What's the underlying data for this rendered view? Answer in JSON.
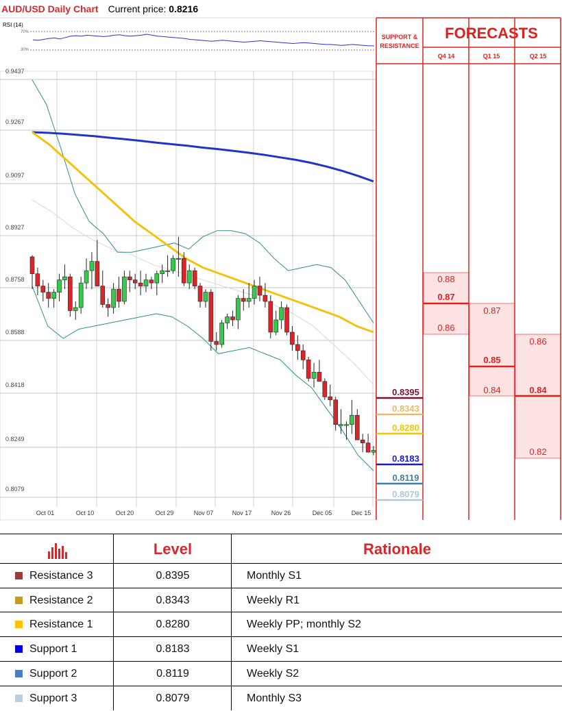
{
  "header": {
    "title": "AUD/USD Daily Chart",
    "price_label": "Current price:",
    "price_value": "0.8216"
  },
  "rsi": {
    "label": "RSI (14)",
    "upper": "70%",
    "lower": "30%",
    "values": [
      52,
      51,
      53,
      55,
      56,
      54,
      57,
      60,
      61,
      60,
      62,
      61,
      60,
      59,
      60,
      62,
      63,
      61,
      60,
      61,
      62,
      64,
      62,
      60,
      59,
      58,
      57,
      56,
      55,
      53,
      52,
      51,
      50,
      49,
      50,
      51,
      50,
      49,
      48,
      47,
      48,
      49,
      50,
      49,
      48,
      47,
      46,
      45,
      44,
      45,
      46,
      45,
      44,
      43,
      42,
      42,
      41,
      40,
      41,
      42,
      41,
      40,
      39,
      39
    ]
  },
  "chart_data": {
    "type": "candlestick",
    "title": "AUD/USD Daily Chart",
    "y_ticks": [
      "0.9437",
      "0.9267",
      "0.9097",
      "0.8927",
      "0.8758",
      "0.8588",
      "0.8418",
      "0.8249",
      "0.8079"
    ],
    "ylim": [
      0.8055,
      0.9437
    ],
    "x_ticks": [
      "Oct 01",
      "Oct 10",
      "Oct 20",
      "Oct 29",
      "Nov 07",
      "Nov 17",
      "Nov 26",
      "Dec 05",
      "Dec 15"
    ],
    "grid": true,
    "candles": [
      [
        0.8845,
        0.885,
        0.874,
        0.879
      ],
      [
        0.879,
        0.881,
        0.872,
        0.875
      ],
      [
        0.875,
        0.877,
        0.87,
        0.873
      ],
      [
        0.873,
        0.876,
        0.868,
        0.871
      ],
      [
        0.871,
        0.874,
        0.868,
        0.873
      ],
      [
        0.873,
        0.879,
        0.87,
        0.877
      ],
      [
        0.877,
        0.882,
        0.874,
        0.878
      ],
      [
        0.878,
        0.879,
        0.865,
        0.867
      ],
      [
        0.867,
        0.87,
        0.864,
        0.868
      ],
      [
        0.868,
        0.878,
        0.866,
        0.876
      ],
      [
        0.876,
        0.884,
        0.874,
        0.88
      ],
      [
        0.88,
        0.886,
        0.874,
        0.883
      ],
      [
        0.883,
        0.89,
        0.876,
        0.875
      ],
      [
        0.875,
        0.88,
        0.868,
        0.869
      ],
      [
        0.869,
        0.871,
        0.865,
        0.868
      ],
      [
        0.868,
        0.876,
        0.866,
        0.874
      ],
      [
        0.874,
        0.878,
        0.868,
        0.87
      ],
      [
        0.87,
        0.88,
        0.869,
        0.878
      ],
      [
        0.878,
        0.88,
        0.873,
        0.877
      ],
      [
        0.877,
        0.879,
        0.874,
        0.876
      ],
      [
        0.876,
        0.88,
        0.872,
        0.875
      ],
      [
        0.875,
        0.879,
        0.873,
        0.877
      ],
      [
        0.877,
        0.878,
        0.874,
        0.876
      ],
      [
        0.876,
        0.88,
        0.872,
        0.879
      ],
      [
        0.879,
        0.882,
        0.876,
        0.88
      ],
      [
        0.88,
        0.885,
        0.878,
        0.88
      ],
      [
        0.88,
        0.885,
        0.879,
        0.884
      ],
      [
        0.884,
        0.891,
        0.878,
        0.884
      ],
      [
        0.884,
        0.886,
        0.875,
        0.876
      ],
      [
        0.876,
        0.882,
        0.874,
        0.88
      ],
      [
        0.88,
        0.881,
        0.874,
        0.875
      ],
      [
        0.875,
        0.876,
        0.868,
        0.87
      ],
      [
        0.87,
        0.874,
        0.868,
        0.873
      ],
      [
        0.873,
        0.874,
        0.854,
        0.857
      ],
      [
        0.857,
        0.86,
        0.854,
        0.856
      ],
      [
        0.856,
        0.864,
        0.855,
        0.863
      ],
      [
        0.863,
        0.866,
        0.861,
        0.865
      ],
      [
        0.865,
        0.867,
        0.862,
        0.864
      ],
      [
        0.864,
        0.872,
        0.861,
        0.871
      ],
      [
        0.871,
        0.874,
        0.867,
        0.87
      ],
      [
        0.87,
        0.876,
        0.868,
        0.871
      ],
      [
        0.871,
        0.877,
        0.869,
        0.875
      ],
      [
        0.875,
        0.878,
        0.87,
        0.872
      ],
      [
        0.872,
        0.876,
        0.868,
        0.87
      ],
      [
        0.87,
        0.872,
        0.858,
        0.86
      ],
      [
        0.86,
        0.867,
        0.859,
        0.864
      ],
      [
        0.864,
        0.87,
        0.861,
        0.868
      ],
      [
        0.868,
        0.869,
        0.859,
        0.86
      ],
      [
        0.86,
        0.862,
        0.854,
        0.856
      ],
      [
        0.856,
        0.859,
        0.851,
        0.854
      ],
      [
        0.854,
        0.856,
        0.848,
        0.851
      ],
      [
        0.851,
        0.852,
        0.844,
        0.845
      ],
      [
        0.845,
        0.85,
        0.842,
        0.847
      ],
      [
        0.847,
        0.851,
        0.844,
        0.844
      ],
      [
        0.844,
        0.845,
        0.838,
        0.839
      ],
      [
        0.839,
        0.843,
        0.836,
        0.838
      ],
      [
        0.838,
        0.839,
        0.828,
        0.83
      ],
      [
        0.83,
        0.835,
        0.827,
        0.83
      ],
      [
        0.83,
        0.831,
        0.825,
        0.83
      ],
      [
        0.83,
        0.838,
        0.827,
        0.833
      ],
      [
        0.833,
        0.835,
        0.825,
        0.825
      ],
      [
        0.825,
        0.827,
        0.821,
        0.824
      ],
      [
        0.824,
        0.827,
        0.821,
        0.821
      ],
      [
        0.821,
        0.823,
        0.82,
        0.8216
      ]
    ],
    "sma_blue": [
      0.925,
      0.9248,
      0.9245,
      0.9241,
      0.9237,
      0.9232,
      0.9227,
      0.9222,
      0.9216,
      0.9211,
      0.9206,
      0.92,
      0.9195,
      0.9189,
      0.9183,
      0.9176,
      0.9168,
      0.916,
      0.915,
      0.9138,
      0.9124,
      0.9108,
      0.909
    ],
    "sma_yellow": [
      0.925,
      0.921,
      0.916,
      0.911,
      0.906,
      0.901,
      0.896,
      0.892,
      0.888,
      0.884,
      0.881,
      0.879,
      0.877,
      0.875,
      0.873,
      0.871,
      0.869,
      0.867,
      0.865,
      0.862,
      0.86
    ],
    "bb_upper": [
      0.942,
      0.934,
      0.92,
      0.905,
      0.896,
      0.892,
      0.886,
      0.886,
      0.887,
      0.888,
      0.889,
      0.887,
      0.891,
      0.893,
      0.893,
      0.892,
      0.889,
      0.884,
      0.88,
      0.881,
      0.882,
      0.881,
      0.877,
      0.87,
      0.863
    ],
    "bb_lower": [
      0.875,
      0.862,
      0.858,
      0.861,
      0.862,
      0.863,
      0.864,
      0.865,
      0.866,
      0.865,
      0.862,
      0.858,
      0.853,
      0.854,
      0.855,
      0.853,
      0.851,
      0.846,
      0.842,
      0.835,
      0.828,
      0.82,
      0.815
    ],
    "bb_mid": [
      0.903,
      0.899,
      0.894,
      0.89,
      0.887,
      0.885,
      0.882,
      0.88,
      0.878,
      0.876,
      0.874,
      0.872,
      0.869,
      0.866,
      0.862,
      0.856,
      0.85,
      0.843
    ]
  },
  "forecast_panel": {
    "support_label": "SUPPORT & RESISTANCE",
    "title": "FORECASTS",
    "columns": [
      "Q4 14",
      "Q1 15",
      "Q2 15"
    ],
    "q4": {
      "high": "0.88",
      "mid": "0.87",
      "low": "0.86"
    },
    "q1": {
      "high": "0.87",
      "mid": "0.85",
      "low": "0.84"
    },
    "q2": {
      "high": "0.86",
      "mid": "0.84",
      "low": "0.82"
    }
  },
  "levels": [
    {
      "name": "Resistance 3",
      "value": "0.8395",
      "color": "#7b1036",
      "rationale": "Monthly S1",
      "swatch": "#9b3a3a"
    },
    {
      "name": "Resistance 2",
      "value": "0.8343",
      "color": "#e6b96c",
      "rationale": "Weekly R1",
      "swatch": "#c89a1c"
    },
    {
      "name": "Resistance 1",
      "value": "0.8280",
      "color": "#f5c400",
      "rationale": "Weekly PP; monthly S2",
      "swatch": "#ffc000"
    },
    {
      "name": "Support 1",
      "value": "0.8183",
      "color": "#1a1ad0",
      "rationale": "Weekly S1",
      "swatch": "#0000e0"
    },
    {
      "name": "Support 2",
      "value": "0.8119",
      "color": "#3f7fa8",
      "rationale": "Weekly S2",
      "swatch": "#4a7fbf"
    },
    {
      "name": "Support 3",
      "value": "0.8079",
      "color": "#a9c9db",
      "rationale": "Monthly S3",
      "swatch": "#b9cfe6"
    }
  ],
  "table_head": {
    "level": "Level",
    "rationale": "Rationale"
  }
}
